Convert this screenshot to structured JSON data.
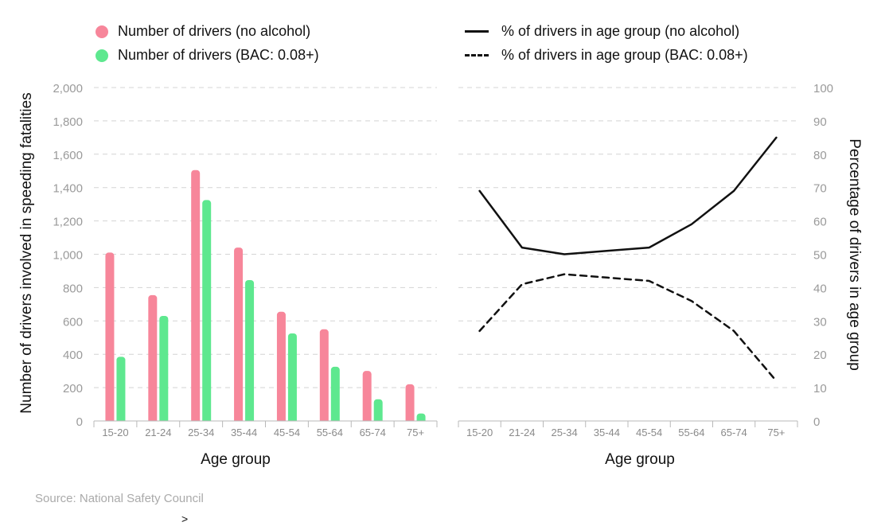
{
  "chart_data": [
    {
      "type": "bar",
      "categories": [
        "15-20",
        "21-24",
        "25-34",
        "35-44",
        "45-54",
        "55-64",
        "65-74",
        "75+"
      ],
      "series": [
        {
          "name": "Number of drivers (no alcohol)",
          "values": [
            1010,
            755,
            1505,
            1040,
            655,
            550,
            300,
            220
          ]
        },
        {
          "name": "Number of drivers (BAC: 0.08+)",
          "values": [
            385,
            630,
            1325,
            845,
            525,
            325,
            130,
            45
          ]
        }
      ],
      "xlabel": "Age group",
      "ylabel": "Number of drivers involved in speeding fatalities",
      "ylim": [
        0,
        2000
      ],
      "yticks": [
        "0",
        "200",
        "400",
        "600",
        "800",
        "1,000",
        "1,200",
        "1,400",
        "1,600",
        "1,800",
        "2,000"
      ],
      "grid": true,
      "colors": [
        "#f7869a",
        "#5ee88f"
      ]
    },
    {
      "type": "line",
      "categories": [
        "15-20",
        "21-24",
        "25-34",
        "35-44",
        "45-54",
        "55-64",
        "65-74",
        "75+"
      ],
      "series": [
        {
          "name": "% of drivers in age group (no alcohol)",
          "values": [
            69,
            52,
            50,
            51,
            52,
            59,
            69,
            85
          ],
          "style": "solid"
        },
        {
          "name": "% of drivers in age group (BAC: 0.08+)",
          "values": [
            27,
            41,
            44,
            43,
            42,
            36,
            27,
            12
          ],
          "style": "dashed"
        }
      ],
      "xlabel": "Age group",
      "ylabel": "Percentage of drivers in age group",
      "ylim": [
        0,
        100
      ],
      "yticks": [
        "0",
        "10",
        "20",
        "30",
        "40",
        "50",
        "60",
        "70",
        "80",
        "90",
        "100"
      ],
      "grid": true,
      "line_color": "#111111"
    }
  ],
  "source": "Source: National Safety Council",
  "caret": ">"
}
